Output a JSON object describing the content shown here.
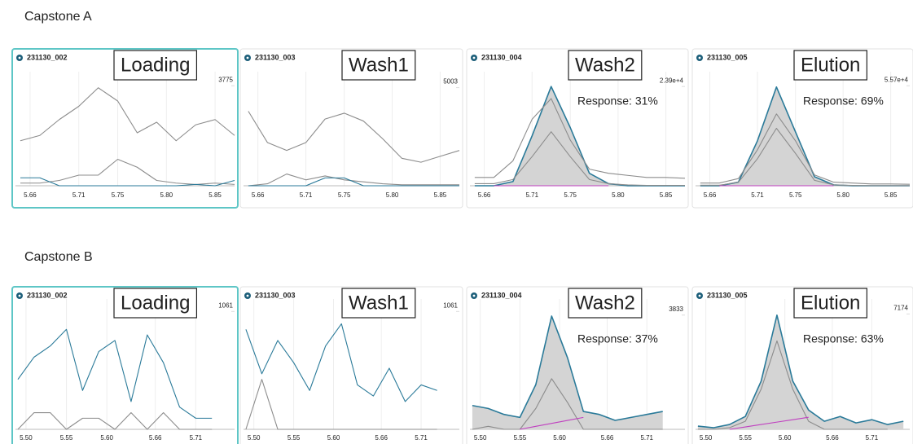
{
  "sections": [
    {
      "title": "Capstone A"
    },
    {
      "title": "Capstone B"
    }
  ],
  "chart_data": [
    {
      "type": "line",
      "title": "231130_002",
      "label": "Loading",
      "selected": true,
      "x": [
        5.65,
        5.67,
        5.69,
        5.71,
        5.73,
        5.75,
        5.77,
        5.79,
        5.81,
        5.83,
        5.85,
        5.87
      ],
      "xlim": [
        5.645,
        5.87
      ],
      "xticks": [
        5.66,
        5.71,
        5.75,
        {
          "value": 5.8,
          "label": "5.80"
        },
        5.85
      ],
      "ylim": [
        0,
        4000
      ],
      "yticks": [
        3775
      ],
      "series": [
        {
          "color": "#8c8c8c",
          "values": [
            1700,
            1900,
            2500,
            3000,
            3700,
            3200,
            2000,
            2400,
            1700,
            2300,
            2500,
            1900
          ]
        },
        {
          "color": "#8c8c8c",
          "values": [
            100,
            100,
            200,
            400,
            400,
            1000,
            700,
            200,
            100,
            50,
            100,
            50
          ]
        },
        {
          "color": "#2a7a99",
          "values": [
            300,
            300,
            0,
            0,
            0,
            0,
            0,
            0,
            0,
            50,
            0,
            200
          ]
        }
      ]
    },
    {
      "type": "line",
      "title": "231130_003",
      "label": "Wash1",
      "selected": false,
      "x": [
        5.65,
        5.67,
        5.69,
        5.71,
        5.73,
        5.75,
        5.77,
        5.79,
        5.81,
        5.83,
        5.85,
        5.87
      ],
      "xlim": [
        5.645,
        5.87
      ],
      "xticks": [
        5.66,
        5.71,
        5.75,
        {
          "value": 5.8,
          "label": "5.80"
        },
        5.85
      ],
      "ylim": [
        0,
        5400
      ],
      "yticks": [
        5003
      ],
      "series": [
        {
          "color": "#8c8c8c",
          "values": [
            3800,
            2200,
            1800,
            2200,
            3400,
            3700,
            3300,
            2400,
            1400,
            1200,
            1500,
            1800
          ]
        },
        {
          "color": "#8c8c8c",
          "values": [
            0,
            100,
            600,
            300,
            500,
            300,
            200,
            100,
            50,
            50,
            50,
            50
          ]
        },
        {
          "color": "#2a7a99",
          "values": [
            0,
            0,
            0,
            0,
            400,
            400,
            0,
            0,
            0,
            0,
            0,
            0
          ]
        }
      ]
    },
    {
      "type": "line",
      "title": "231130_004",
      "label": "Wash2",
      "selected": false,
      "annotation": "Response: 31%",
      "x": [
        5.65,
        5.67,
        5.69,
        5.71,
        5.73,
        5.75,
        5.77,
        5.79,
        5.81,
        5.83,
        5.85,
        5.87
      ],
      "xlim": [
        5.645,
        5.87
      ],
      "xticks": [
        5.66,
        5.71,
        5.75,
        {
          "value": 5.8,
          "label": "5.80"
        },
        5.85
      ],
      "ylim": [
        0,
        25500
      ],
      "yticks": [
        {
          "value": 23900,
          "label": "2.39e+4"
        }
      ],
      "series": [
        {
          "color": "#2a7a99",
          "fill": "#d4d4d4",
          "values": [
            0,
            0,
            1000,
            12000,
            23900,
            14000,
            3000,
            500,
            0,
            0,
            0,
            0
          ]
        },
        {
          "color": "#8c8c8c",
          "values": [
            2000,
            2000,
            6000,
            16000,
            21000,
            11000,
            4000,
            3000,
            2500,
            2000,
            2000,
            1800
          ]
        },
        {
          "color": "#8c8c8c",
          "values": [
            500,
            500,
            1500,
            7000,
            13000,
            7000,
            1500,
            500,
            200,
            100,
            100,
            100
          ]
        },
        {
          "color": "#c040c0",
          "values": [
            null,
            0,
            0,
            0,
            0,
            0,
            0,
            0,
            null,
            null,
            null,
            null
          ]
        }
      ]
    },
    {
      "type": "line",
      "title": "231130_005",
      "label": "Elution",
      "selected": false,
      "annotation": "Response: 69%",
      "x": [
        5.65,
        5.67,
        5.69,
        5.71,
        5.73,
        5.75,
        5.77,
        5.79,
        5.81,
        5.83,
        5.85,
        5.87
      ],
      "xlim": [
        5.645,
        5.87
      ],
      "xticks": [
        5.66,
        5.71,
        5.75,
        {
          "value": 5.8,
          "label": "5.80"
        },
        5.85
      ],
      "ylim": [
        0,
        59000
      ],
      "yticks": [
        {
          "value": 55700,
          "label": "5.57e+4"
        }
      ],
      "series": [
        {
          "color": "#2a7a99",
          "fill": "#d4d4d4",
          "values": [
            0,
            0,
            2000,
            25000,
            55000,
            30000,
            5000,
            500,
            0,
            0,
            0,
            0
          ]
        },
        {
          "color": "#8c8c8c",
          "values": [
            1500,
            1500,
            4000,
            20000,
            40000,
            25000,
            6000,
            2000,
            1500,
            1000,
            1000,
            800
          ]
        },
        {
          "color": "#8c8c8c",
          "values": [
            300,
            300,
            2000,
            15000,
            32000,
            18000,
            3000,
            500,
            200,
            100,
            100,
            100
          ]
        },
        {
          "color": "#c040c0",
          "values": [
            null,
            0,
            0,
            0,
            0,
            0,
            0,
            0,
            null,
            null,
            null,
            null
          ]
        }
      ]
    },
    {
      "type": "line",
      "title": "231130_002",
      "label": "Loading",
      "selected": true,
      "x": [
        5.49,
        5.51,
        5.53,
        5.55,
        5.57,
        5.59,
        5.61,
        5.63,
        5.65,
        5.67,
        5.69,
        5.71,
        5.73,
        5.75
      ],
      "xlim": [
        5.487,
        5.758
      ],
      "xticks": [
        {
          "value": 5.5,
          "label": "5.50"
        },
        5.55,
        {
          "value": 5.6,
          "label": "5.60"
        },
        5.66,
        5.71
      ],
      "ylim": [
        0,
        1100
      ],
      "yticks": [
        1061
      ],
      "series": [
        {
          "color": "#8c8c8c",
          "values": [
            0,
            150,
            150,
            0,
            100,
            100,
            0,
            150,
            0,
            150,
            0,
            0,
            0,
            null
          ]
        },
        {
          "color": "#2a7a99",
          "values": [
            450,
            650,
            750,
            900,
            350,
            700,
            800,
            250,
            850,
            600,
            200,
            100,
            100,
            null
          ]
        }
      ]
    },
    {
      "type": "line",
      "title": "231130_003",
      "label": "Wash1",
      "selected": false,
      "x": [
        5.49,
        5.51,
        5.53,
        5.55,
        5.57,
        5.59,
        5.61,
        5.63,
        5.65,
        5.67,
        5.69,
        5.71,
        5.73,
        5.75
      ],
      "xlim": [
        5.487,
        5.758
      ],
      "xticks": [
        {
          "value": 5.5,
          "label": "5.50"
        },
        5.55,
        {
          "value": 5.6,
          "label": "5.60"
        },
        5.66,
        5.71
      ],
      "ylim": [
        0,
        1100
      ],
      "yticks": [
        1061
      ],
      "series": [
        {
          "color": "#8c8c8c",
          "values": [
            0,
            450,
            0,
            0,
            0,
            0,
            0,
            0,
            0,
            0,
            0,
            0,
            0,
            null
          ]
        },
        {
          "color": "#2a7a99",
          "values": [
            900,
            500,
            800,
            600,
            350,
            750,
            950,
            400,
            300,
            550,
            250,
            400,
            350,
            null
          ]
        }
      ]
    },
    {
      "type": "line",
      "title": "231130_004",
      "label": "Wash2",
      "selected": false,
      "annotation": "Response: 37%",
      "x": [
        5.49,
        5.51,
        5.53,
        5.55,
        5.57,
        5.59,
        5.61,
        5.63,
        5.65,
        5.67,
        5.69,
        5.71,
        5.73,
        5.75
      ],
      "xlim": [
        5.487,
        5.758
      ],
      "xticks": [
        {
          "value": 5.5,
          "label": "5.50"
        },
        5.55,
        {
          "value": 5.6,
          "label": "5.60"
        },
        5.66,
        5.71
      ],
      "ylim": [
        0,
        4100
      ],
      "yticks": [
        3833
      ],
      "series": [
        {
          "color": "#2a7a99",
          "fill": "#d4d4d4",
          "values": [
            800,
            700,
            500,
            400,
            1500,
            3800,
            2400,
            600,
            500,
            300,
            400,
            500,
            600,
            null
          ]
        },
        {
          "color": "#8c8c8c",
          "values": [
            0,
            100,
            0,
            0,
            700,
            1700,
            900,
            0,
            0,
            0,
            0,
            0,
            0,
            null
          ]
        },
        {
          "color": "#c040c0",
          "values": [
            null,
            null,
            null,
            0,
            100,
            200,
            300,
            400,
            null,
            null,
            null,
            null,
            null,
            null
          ]
        }
      ]
    },
    {
      "type": "line",
      "title": "231130_005",
      "label": "Elution",
      "selected": false,
      "annotation": "Response: 63%",
      "x": [
        5.49,
        5.51,
        5.53,
        5.55,
        5.57,
        5.59,
        5.61,
        5.63,
        5.65,
        5.67,
        5.69,
        5.71,
        5.73,
        5.75
      ],
      "xlim": [
        5.487,
        5.758
      ],
      "xticks": [
        {
          "value": 5.5,
          "label": "5.50"
        },
        5.55,
        {
          "value": 5.6,
          "label": "5.60"
        },
        5.66,
        5.71
      ],
      "ylim": [
        0,
        7600
      ],
      "yticks": [
        7174
      ],
      "series": [
        {
          "color": "#2a7a99",
          "fill": "#d4d4d4",
          "values": [
            200,
            100,
            300,
            800,
            3000,
            7100,
            3000,
            1200,
            500,
            800,
            400,
            600,
            300,
            500
          ]
        },
        {
          "color": "#8c8c8c",
          "values": [
            0,
            0,
            100,
            500,
            2500,
            5500,
            2500,
            500,
            0,
            0,
            0,
            0,
            0,
            null
          ]
        },
        {
          "color": "#c040c0",
          "values": [
            null,
            null,
            0,
            150,
            300,
            450,
            600,
            750,
            null,
            null,
            null,
            null,
            null,
            null
          ]
        }
      ]
    }
  ]
}
